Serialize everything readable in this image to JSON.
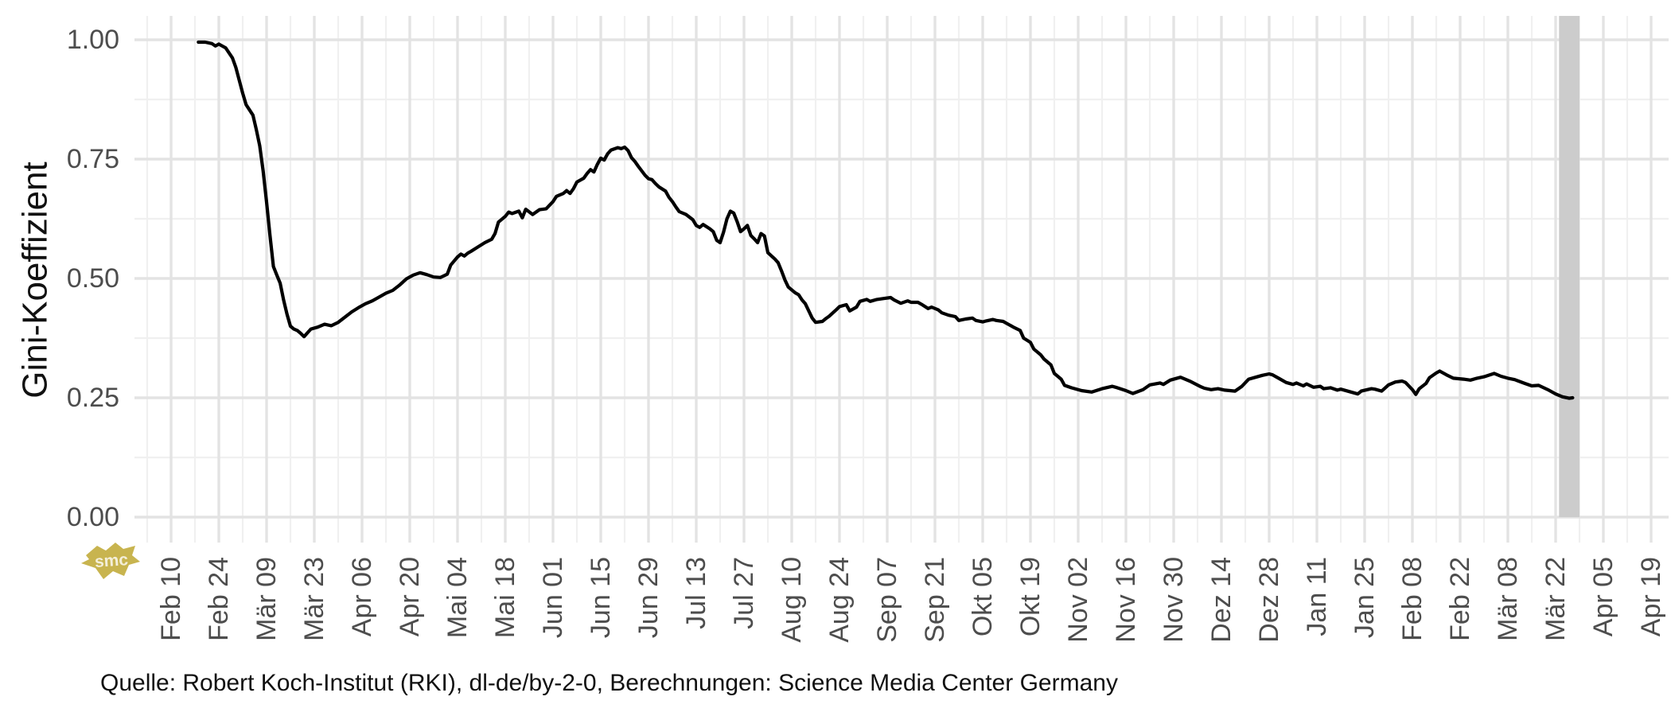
{
  "chart_data": {
    "type": "line",
    "title": "",
    "ylabel": "Gini-Koeffizient",
    "caption": "Quelle: Robert Koch-Institut (RKI), dl-de/by-2-0, Berechnungen: Science Media Center Germany",
    "background": "#ffffff",
    "grid": {
      "major_color": "#e3e3e3",
      "minor_color": "#f0f0f0",
      "grid_on": true
    },
    "axis_text_color": "#4d4d4d",
    "line_color": "#000000",
    "line_width": 4.2,
    "legend": "none",
    "y_axis": {
      "range": [
        0,
        1
      ],
      "ticks": [
        "0.00",
        "0.25",
        "0.50",
        "0.75",
        "1.00"
      ],
      "tick_values": [
        0,
        0.25,
        0.5,
        0.75,
        1.0
      ],
      "minor_step": 0.125
    },
    "x_axis": {
      "start_date": "2020-02-10",
      "end_date": "2021-04-19",
      "tick_interval_days": 14,
      "minor_grid_interval_days": 7,
      "tick_labels": [
        "Feb 10",
        "Feb 24",
        "Mär 09",
        "Mär 23",
        "Apr 06",
        "Apr 20",
        "Mai 04",
        "Mai 18",
        "Jun 01",
        "Jun 15",
        "Jun 29",
        "Jul 13",
        "Jul 27",
        "Aug 10",
        "Aug 24",
        "Sep 07",
        "Sep 21",
        "Okt 05",
        "Okt 19",
        "Nov 02",
        "Nov 16",
        "Nov 30",
        "Dez 14",
        "Dez 28",
        "Jan 11",
        "Jan 25",
        "Feb 08",
        "Feb 22",
        "Mär 08",
        "Mär 22",
        "Apr 05",
        "Apr 19"
      ]
    },
    "band": {
      "from": "2021-03-23",
      "to": "2021-03-29",
      "color": "#cccccc"
    },
    "series": [
      {
        "name": "Gini-Koeffizient",
        "color": "#000000",
        "points": [
          [
            "2020-02-18",
            0.995
          ],
          [
            "2020-02-20",
            0.995
          ],
          [
            "2020-02-22",
            0.992
          ],
          [
            "2020-02-23",
            0.987
          ],
          [
            "2020-02-24",
            0.991
          ],
          [
            "2020-02-26",
            0.983
          ],
          [
            "2020-02-28",
            0.962
          ],
          [
            "2020-02-29",
            0.942
          ],
          [
            "2020-03-01",
            0.915
          ],
          [
            "2020-03-02",
            0.888
          ],
          [
            "2020-03-03",
            0.864
          ],
          [
            "2020-03-04",
            0.853
          ],
          [
            "2020-03-05",
            0.842
          ],
          [
            "2020-03-06",
            0.812
          ],
          [
            "2020-03-07",
            0.778
          ],
          [
            "2020-03-08",
            0.725
          ],
          [
            "2020-03-09",
            0.66
          ],
          [
            "2020-03-10",
            0.59
          ],
          [
            "2020-03-11",
            0.525
          ],
          [
            "2020-03-12",
            0.507
          ],
          [
            "2020-03-13",
            0.49
          ],
          [
            "2020-03-14",
            0.455
          ],
          [
            "2020-03-15",
            0.425
          ],
          [
            "2020-03-16",
            0.4
          ],
          [
            "2020-03-17",
            0.394
          ],
          [
            "2020-03-18",
            0.391
          ],
          [
            "2020-03-19",
            0.385
          ],
          [
            "2020-03-20",
            0.378
          ],
          [
            "2020-03-21",
            0.386
          ],
          [
            "2020-03-22",
            0.394
          ],
          [
            "2020-03-24",
            0.398
          ],
          [
            "2020-03-26",
            0.404
          ],
          [
            "2020-03-28",
            0.401
          ],
          [
            "2020-03-30",
            0.408
          ],
          [
            "2020-04-01",
            0.419
          ],
          [
            "2020-04-03",
            0.43
          ],
          [
            "2020-04-05",
            0.439
          ],
          [
            "2020-04-07",
            0.447
          ],
          [
            "2020-04-09",
            0.453
          ],
          [
            "2020-04-11",
            0.461
          ],
          [
            "2020-04-13",
            0.469
          ],
          [
            "2020-04-15",
            0.475
          ],
          [
            "2020-04-17",
            0.486
          ],
          [
            "2020-04-19",
            0.499
          ],
          [
            "2020-04-21",
            0.507
          ],
          [
            "2020-04-23",
            0.512
          ],
          [
            "2020-04-25",
            0.508
          ],
          [
            "2020-04-27",
            0.503
          ],
          [
            "2020-04-29",
            0.502
          ],
          [
            "2020-05-01",
            0.509
          ],
          [
            "2020-05-02",
            0.528
          ],
          [
            "2020-05-04",
            0.545
          ],
          [
            "2020-05-05",
            0.551
          ],
          [
            "2020-05-06",
            0.547
          ],
          [
            "2020-05-07",
            0.553
          ],
          [
            "2020-05-08",
            0.557
          ],
          [
            "2020-05-10",
            0.566
          ],
          [
            "2020-05-12",
            0.575
          ],
          [
            "2020-05-14",
            0.582
          ],
          [
            "2020-05-15",
            0.594
          ],
          [
            "2020-05-16",
            0.618
          ],
          [
            "2020-05-18",
            0.63
          ],
          [
            "2020-05-19",
            0.639
          ],
          [
            "2020-05-20",
            0.636
          ],
          [
            "2020-05-22",
            0.641
          ],
          [
            "2020-05-23",
            0.627
          ],
          [
            "2020-05-24",
            0.645
          ],
          [
            "2020-05-26",
            0.634
          ],
          [
            "2020-05-28",
            0.644
          ],
          [
            "2020-05-30",
            0.646
          ],
          [
            "2020-06-01",
            0.661
          ],
          [
            "2020-06-02",
            0.672
          ],
          [
            "2020-06-04",
            0.678
          ],
          [
            "2020-06-05",
            0.684
          ],
          [
            "2020-06-06",
            0.678
          ],
          [
            "2020-06-07",
            0.688
          ],
          [
            "2020-06-08",
            0.702
          ],
          [
            "2020-06-10",
            0.71
          ],
          [
            "2020-06-11",
            0.72
          ],
          [
            "2020-06-12",
            0.728
          ],
          [
            "2020-06-13",
            0.723
          ],
          [
            "2020-06-14",
            0.739
          ],
          [
            "2020-06-15",
            0.752
          ],
          [
            "2020-06-16",
            0.748
          ],
          [
            "2020-06-17",
            0.761
          ],
          [
            "2020-06-18",
            0.769
          ],
          [
            "2020-06-20",
            0.774
          ],
          [
            "2020-06-21",
            0.772
          ],
          [
            "2020-06-22",
            0.775
          ],
          [
            "2020-06-23",
            0.768
          ],
          [
            "2020-06-24",
            0.753
          ],
          [
            "2020-06-25",
            0.745
          ],
          [
            "2020-06-26",
            0.735
          ],
          [
            "2020-06-28",
            0.716
          ],
          [
            "2020-06-29",
            0.709
          ],
          [
            "2020-06-30",
            0.707
          ],
          [
            "2020-07-01",
            0.699
          ],
          [
            "2020-07-02",
            0.692
          ],
          [
            "2020-07-04",
            0.683
          ],
          [
            "2020-07-05",
            0.67
          ],
          [
            "2020-07-06",
            0.661
          ],
          [
            "2020-07-07",
            0.65
          ],
          [
            "2020-07-08",
            0.64
          ],
          [
            "2020-07-10",
            0.634
          ],
          [
            "2020-07-12",
            0.623
          ],
          [
            "2020-07-13",
            0.611
          ],
          [
            "2020-07-14",
            0.607
          ],
          [
            "2020-07-15",
            0.613
          ],
          [
            "2020-07-17",
            0.604
          ],
          [
            "2020-07-18",
            0.598
          ],
          [
            "2020-07-19",
            0.58
          ],
          [
            "2020-07-20",
            0.575
          ],
          [
            "2020-07-21",
            0.597
          ],
          [
            "2020-07-22",
            0.625
          ],
          [
            "2020-07-23",
            0.641
          ],
          [
            "2020-07-24",
            0.637
          ],
          [
            "2020-07-25",
            0.619
          ],
          [
            "2020-07-26",
            0.598
          ],
          [
            "2020-07-27",
            0.604
          ],
          [
            "2020-07-28",
            0.611
          ],
          [
            "2020-07-29",
            0.59
          ],
          [
            "2020-07-30",
            0.583
          ],
          [
            "2020-07-31",
            0.575
          ],
          [
            "2020-08-01",
            0.594
          ],
          [
            "2020-08-02",
            0.589
          ],
          [
            "2020-08-03",
            0.554
          ],
          [
            "2020-08-05",
            0.541
          ],
          [
            "2020-08-06",
            0.533
          ],
          [
            "2020-08-07",
            0.516
          ],
          [
            "2020-08-08",
            0.497
          ],
          [
            "2020-08-09",
            0.482
          ],
          [
            "2020-08-11",
            0.47
          ],
          [
            "2020-08-12",
            0.466
          ],
          [
            "2020-08-13",
            0.455
          ],
          [
            "2020-08-14",
            0.447
          ],
          [
            "2020-08-15",
            0.432
          ],
          [
            "2020-08-16",
            0.417
          ],
          [
            "2020-08-17",
            0.408
          ],
          [
            "2020-08-19",
            0.41
          ],
          [
            "2020-08-20",
            0.416
          ],
          [
            "2020-08-21",
            0.421
          ],
          [
            "2020-08-23",
            0.434
          ],
          [
            "2020-08-24",
            0.441
          ],
          [
            "2020-08-26",
            0.445
          ],
          [
            "2020-08-27",
            0.432
          ],
          [
            "2020-08-29",
            0.44
          ],
          [
            "2020-08-30",
            0.452
          ],
          [
            "2020-09-01",
            0.456
          ],
          [
            "2020-09-02",
            0.452
          ],
          [
            "2020-09-04",
            0.456
          ],
          [
            "2020-09-06",
            0.458
          ],
          [
            "2020-09-08",
            0.46
          ],
          [
            "2020-09-09",
            0.455
          ],
          [
            "2020-09-11",
            0.448
          ],
          [
            "2020-09-13",
            0.453
          ],
          [
            "2020-09-14",
            0.45
          ],
          [
            "2020-09-16",
            0.45
          ],
          [
            "2020-09-17",
            0.446
          ],
          [
            "2020-09-19",
            0.437
          ],
          [
            "2020-09-20",
            0.44
          ],
          [
            "2020-09-22",
            0.434
          ],
          [
            "2020-09-23",
            0.428
          ],
          [
            "2020-09-25",
            0.423
          ],
          [
            "2020-09-27",
            0.42
          ],
          [
            "2020-09-28",
            0.412
          ],
          [
            "2020-09-30",
            0.415
          ],
          [
            "2020-10-02",
            0.417
          ],
          [
            "2020-10-03",
            0.412
          ],
          [
            "2020-10-05",
            0.409
          ],
          [
            "2020-10-06",
            0.411
          ],
          [
            "2020-10-08",
            0.414
          ],
          [
            "2020-10-09",
            0.412
          ],
          [
            "2020-10-11",
            0.41
          ],
          [
            "2020-10-12",
            0.406
          ],
          [
            "2020-10-14",
            0.398
          ],
          [
            "2020-10-16",
            0.391
          ],
          [
            "2020-10-17",
            0.375
          ],
          [
            "2020-10-19",
            0.366
          ],
          [
            "2020-10-20",
            0.352
          ],
          [
            "2020-10-22",
            0.34
          ],
          [
            "2020-10-23",
            0.331
          ],
          [
            "2020-10-25",
            0.319
          ],
          [
            "2020-10-26",
            0.301
          ],
          [
            "2020-10-28",
            0.289
          ],
          [
            "2020-10-29",
            0.276
          ],
          [
            "2020-10-31",
            0.271
          ],
          [
            "2020-11-03",
            0.265
          ],
          [
            "2020-11-06",
            0.262
          ],
          [
            "2020-11-09",
            0.269
          ],
          [
            "2020-11-12",
            0.274
          ],
          [
            "2020-11-13",
            0.272
          ],
          [
            "2020-11-16",
            0.265
          ],
          [
            "2020-11-18",
            0.259
          ],
          [
            "2020-11-21",
            0.267
          ],
          [
            "2020-11-23",
            0.277
          ],
          [
            "2020-11-26",
            0.281
          ],
          [
            "2020-11-27",
            0.278
          ],
          [
            "2020-11-29",
            0.287
          ],
          [
            "2020-12-02",
            0.293
          ],
          [
            "2020-12-05",
            0.284
          ],
          [
            "2020-12-08",
            0.273
          ],
          [
            "2020-12-09",
            0.27
          ],
          [
            "2020-12-11",
            0.267
          ],
          [
            "2020-12-13",
            0.269
          ],
          [
            "2020-12-15",
            0.266
          ],
          [
            "2020-12-18",
            0.264
          ],
          [
            "2020-12-20",
            0.274
          ],
          [
            "2020-12-22",
            0.289
          ],
          [
            "2020-12-24",
            0.293
          ],
          [
            "2020-12-26",
            0.297
          ],
          [
            "2020-12-28",
            0.3
          ],
          [
            "2020-12-29",
            0.298
          ],
          [
            "2020-12-31",
            0.29
          ],
          [
            "2021-01-02",
            0.282
          ],
          [
            "2021-01-04",
            0.278
          ],
          [
            "2021-01-05",
            0.281
          ],
          [
            "2021-01-07",
            0.275
          ],
          [
            "2021-01-08",
            0.279
          ],
          [
            "2021-01-10",
            0.272
          ],
          [
            "2021-01-12",
            0.274
          ],
          [
            "2021-01-13",
            0.269
          ],
          [
            "2021-01-15",
            0.271
          ],
          [
            "2021-01-17",
            0.266
          ],
          [
            "2021-01-18",
            0.268
          ],
          [
            "2021-01-21",
            0.262
          ],
          [
            "2021-01-23",
            0.258
          ],
          [
            "2021-01-24",
            0.264
          ],
          [
            "2021-01-27",
            0.269
          ],
          [
            "2021-01-28",
            0.268
          ],
          [
            "2021-01-30",
            0.264
          ],
          [
            "2021-02-01",
            0.277
          ],
          [
            "2021-02-03",
            0.283
          ],
          [
            "2021-02-05",
            0.285
          ],
          [
            "2021-02-06",
            0.282
          ],
          [
            "2021-02-08",
            0.267
          ],
          [
            "2021-02-09",
            0.257
          ],
          [
            "2021-02-10",
            0.269
          ],
          [
            "2021-02-12",
            0.28
          ],
          [
            "2021-02-13",
            0.292
          ],
          [
            "2021-02-15",
            0.302
          ],
          [
            "2021-02-16",
            0.306
          ],
          [
            "2021-02-18",
            0.298
          ],
          [
            "2021-02-20",
            0.291
          ],
          [
            "2021-02-23",
            0.289
          ],
          [
            "2021-02-25",
            0.287
          ],
          [
            "2021-02-27",
            0.291
          ],
          [
            "2021-03-01",
            0.294
          ],
          [
            "2021-03-04",
            0.301
          ],
          [
            "2021-03-06",
            0.295
          ],
          [
            "2021-03-08",
            0.291
          ],
          [
            "2021-03-10",
            0.288
          ],
          [
            "2021-03-13",
            0.28
          ],
          [
            "2021-03-15",
            0.275
          ],
          [
            "2021-03-17",
            0.276
          ],
          [
            "2021-03-20",
            0.266
          ],
          [
            "2021-03-22",
            0.258
          ],
          [
            "2021-03-24",
            0.252
          ],
          [
            "2021-03-26",
            0.249
          ],
          [
            "2021-03-27",
            0.25
          ]
        ]
      }
    ]
  },
  "logo": {
    "text": "smc",
    "color": "#c8b44f"
  }
}
